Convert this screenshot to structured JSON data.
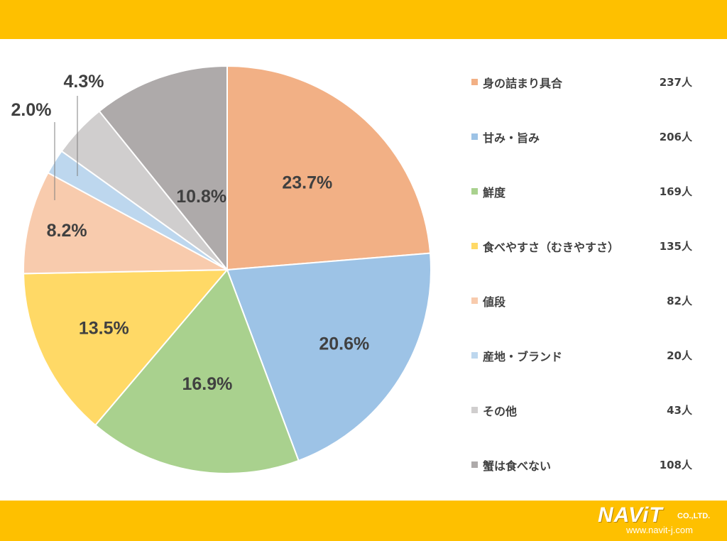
{
  "colors": {
    "band": "#fec000",
    "text": "#404040"
  },
  "chart_data": {
    "type": "pie",
    "title": "",
    "slices": [
      {
        "label": "身の詰まり具合",
        "count": "237人",
        "value": 23.7,
        "label_text": "23.7%",
        "color": "#f2b085"
      },
      {
        "label": "甘み・旨み",
        "count": "206人",
        "value": 20.6,
        "label_text": "20.6%",
        "color": "#9dc3e6"
      },
      {
        "label": "鮮度",
        "count": "169人",
        "value": 16.9,
        "label_text": "16.9%",
        "color": "#a9d18e"
      },
      {
        "label": "食べやすさ（むきやすさ）",
        "count": "135人",
        "value": 13.5,
        "label_text": "13.5%",
        "color": "#ffd966"
      },
      {
        "label": "値段",
        "count": "82人",
        "value": 8.2,
        "label_text": "8.2%",
        "color": "#f8cbad"
      },
      {
        "label": "産地・ブランド",
        "count": "20人",
        "value": 2.0,
        "label_text": "2.0%",
        "color": "#bdd7ee"
      },
      {
        "label": "その他",
        "count": "43人",
        "value": 4.3,
        "label_text": "4.3%",
        "color": "#d0cece"
      },
      {
        "label": "蟹は食べない",
        "count": "108人",
        "value": 10.8,
        "label_text": "10.8%",
        "color": "#aeaaaa"
      }
    ],
    "legend_position": "right"
  },
  "logo": {
    "name": "NAViT",
    "suffix": "CO.,LTD.",
    "url": "www.navit-j.com"
  }
}
